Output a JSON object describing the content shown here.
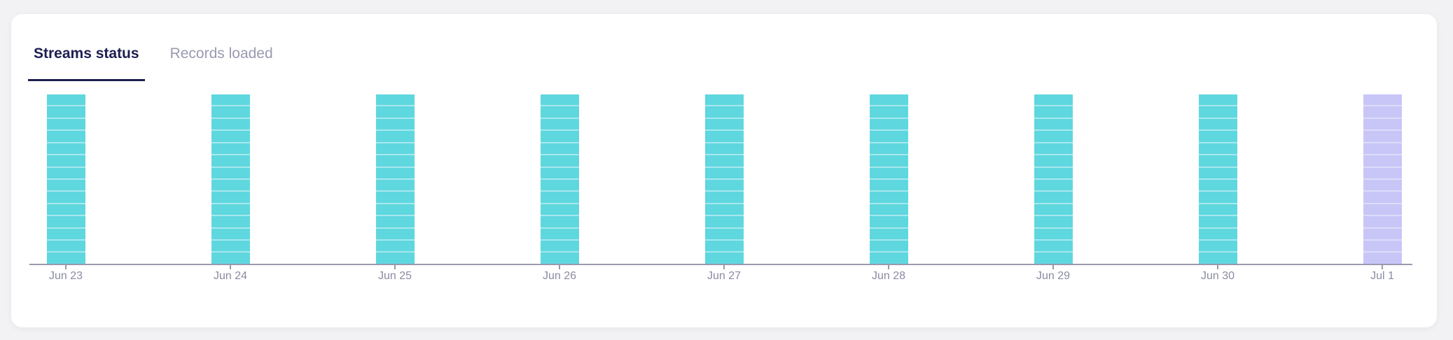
{
  "page": {
    "background": "#f2f2f4"
  },
  "card": {
    "background": "#ffffff"
  },
  "tabs": [
    {
      "label": "Streams status",
      "active": true
    },
    {
      "label": "Records loaded",
      "active": false
    }
  ],
  "colors": {
    "active_tab_text": "#1e1e52",
    "active_tab_underline": "#1e1e52",
    "inactive_tab_text": "#9a9ab0",
    "axis_line": "#9a99ae",
    "tick_mark": "#9a99ae",
    "axis_label_text": "#8b8ba3",
    "bar_teal": "#5fd7df",
    "bar_teal_separator": "#a6e8ed",
    "bar_lavender": "#c8c6f7",
    "bar_lavender_separator": "#dddcfa"
  },
  "chart_data": {
    "type": "bar",
    "subtype": "stacked-segment-status",
    "title": "",
    "xlabel": "",
    "ylabel": "",
    "categories": [
      "Jun 23",
      "Jun 24",
      "Jun 25",
      "Jun 26",
      "Jun 27",
      "Jun 28",
      "Jun 29",
      "Jun 30",
      "Jul 1"
    ],
    "segments_per_bar": 14,
    "bars": [
      {
        "category": "Jun 23",
        "segments": 14,
        "color": "#5fd7df",
        "separator_color": "#a6e8ed"
      },
      {
        "category": "Jun 24",
        "segments": 14,
        "color": "#5fd7df",
        "separator_color": "#a6e8ed"
      },
      {
        "category": "Jun 25",
        "segments": 14,
        "color": "#5fd7df",
        "separator_color": "#a6e8ed"
      },
      {
        "category": "Jun 26",
        "segments": 14,
        "color": "#5fd7df",
        "separator_color": "#a6e8ed"
      },
      {
        "category": "Jun 27",
        "segments": 14,
        "color": "#5fd7df",
        "separator_color": "#a6e8ed"
      },
      {
        "category": "Jun 28",
        "segments": 14,
        "color": "#5fd7df",
        "separator_color": "#a6e8ed"
      },
      {
        "category": "Jun 29",
        "segments": 14,
        "color": "#5fd7df",
        "separator_color": "#a6e8ed"
      },
      {
        "category": "Jun 30",
        "segments": 14,
        "color": "#5fd7df",
        "separator_color": "#a6e8ed"
      },
      {
        "category": "Jul 1",
        "segments": 14,
        "color": "#c8c6f7",
        "separator_color": "#dddcfa"
      }
    ],
    "y_axis_visible": false,
    "gridlines": false,
    "legend": "none",
    "x_axis_line": true,
    "x_axis_ticks": true
  }
}
